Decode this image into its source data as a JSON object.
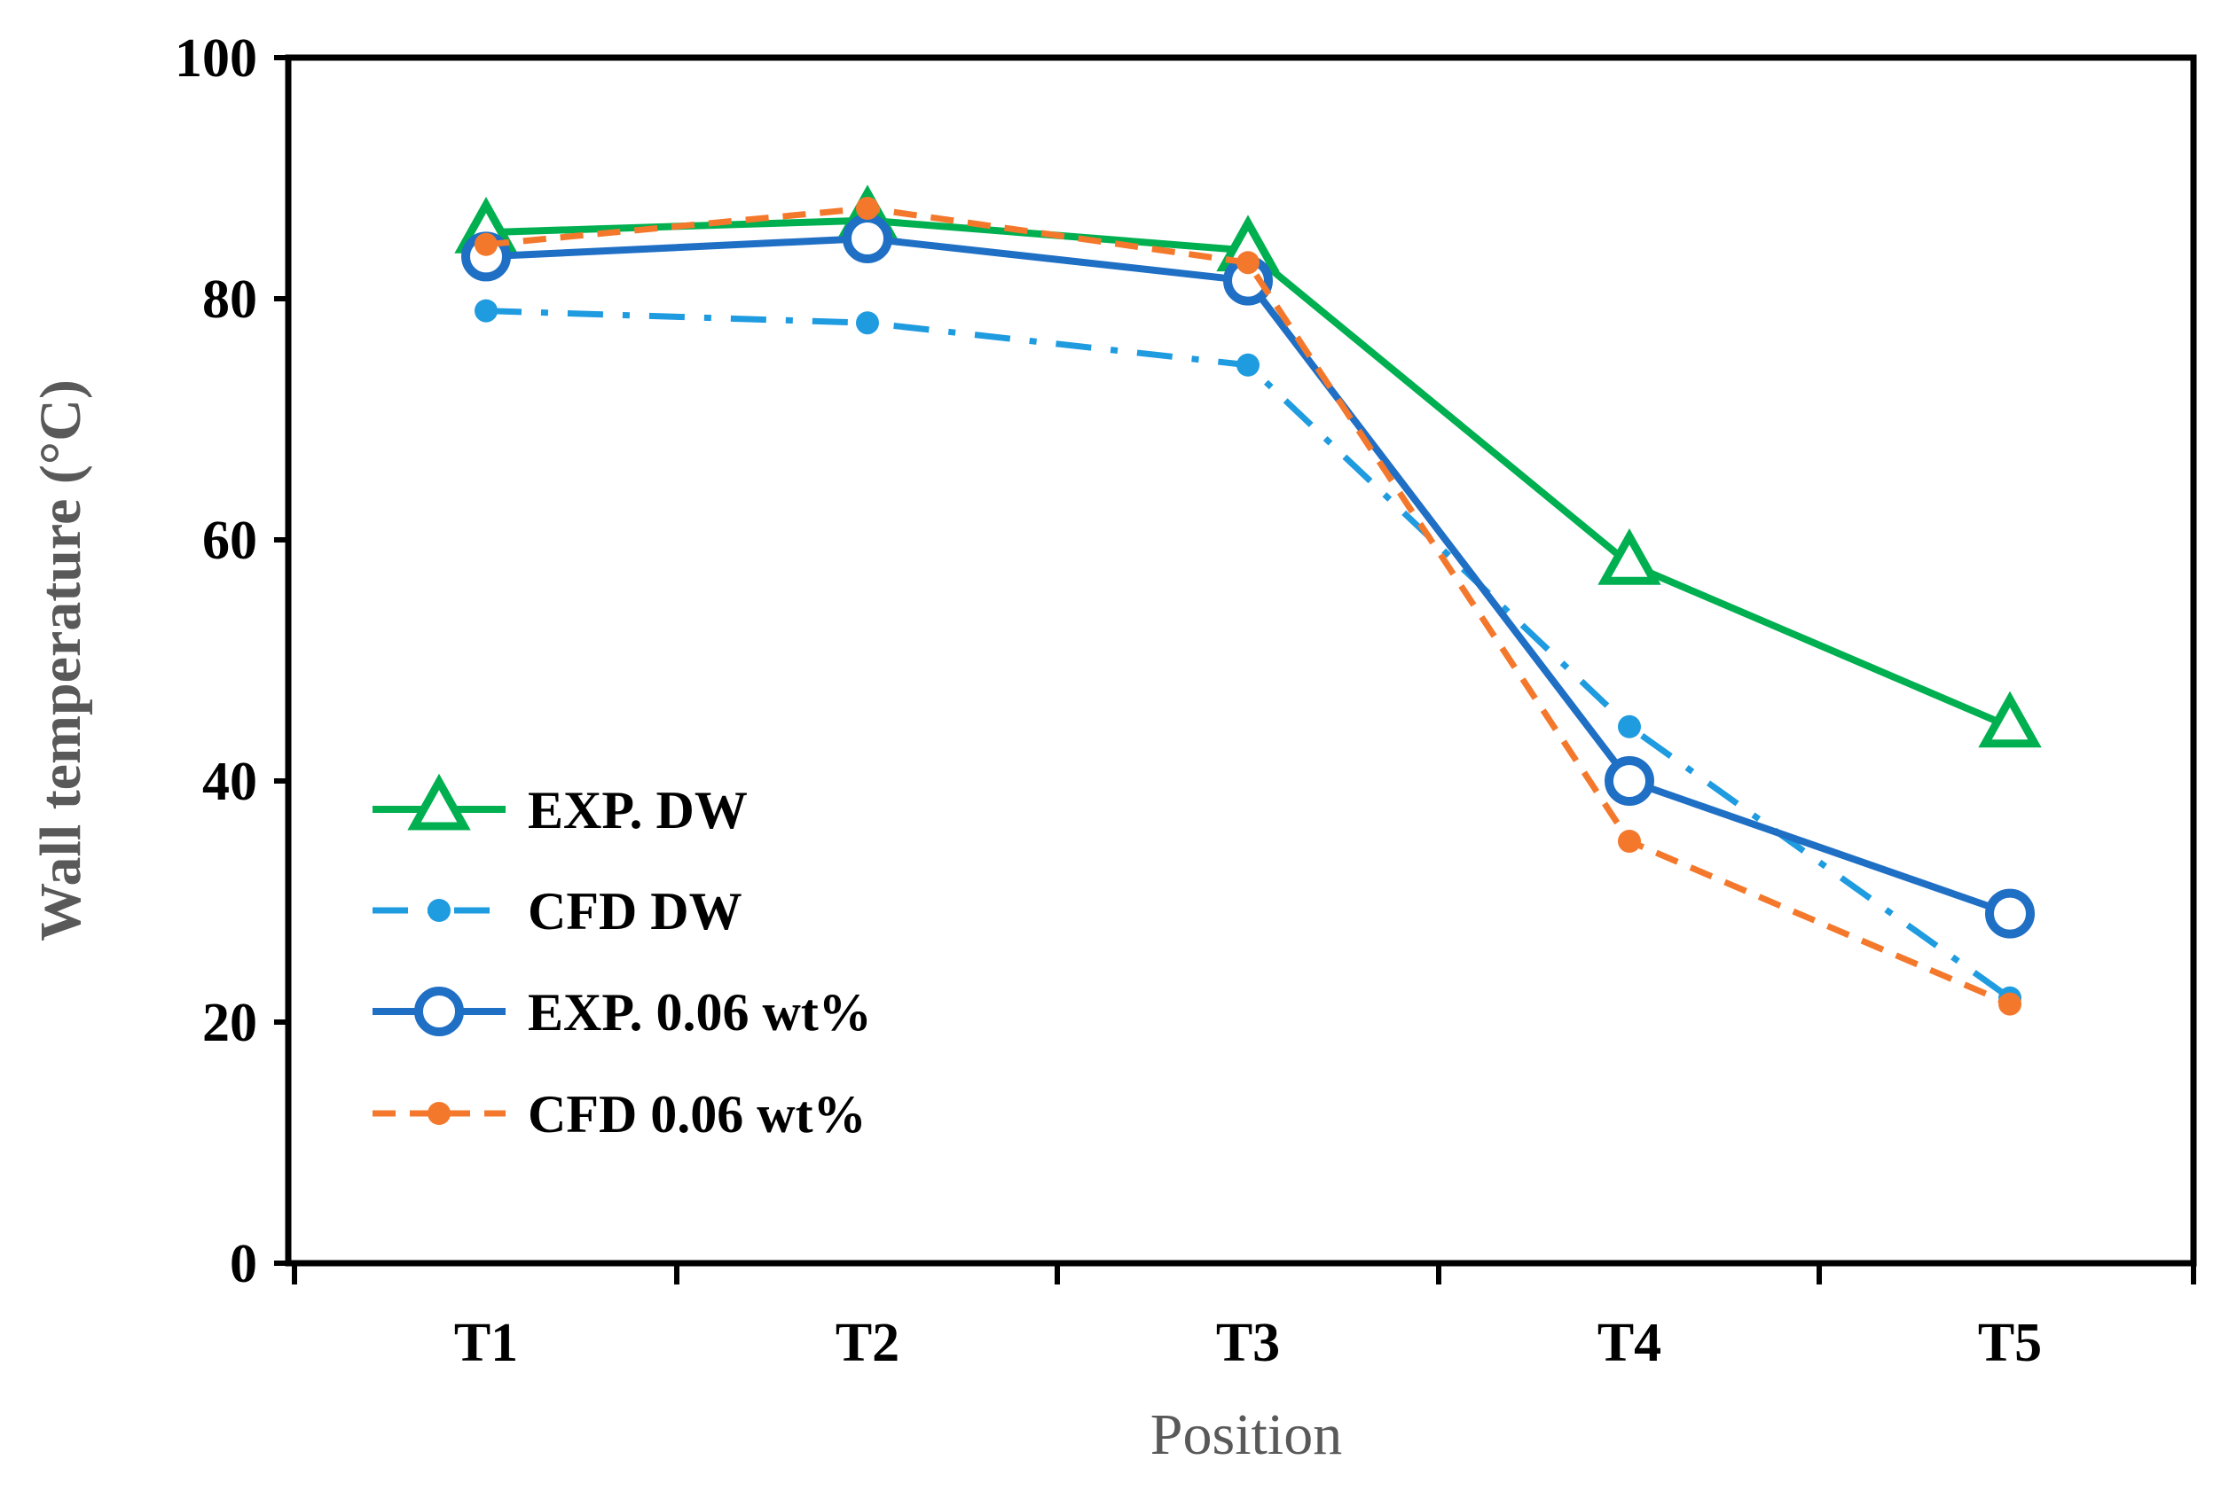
{
  "chart_data": {
    "type": "line",
    "title": "",
    "xlabel": "Position",
    "ylabel": "Wall temperature (°C)",
    "categories": [
      "T1",
      "T2",
      "T3",
      "T4",
      "T5"
    ],
    "ylim": [
      0,
      100
    ],
    "yticks": [
      0,
      20,
      40,
      60,
      80,
      100
    ],
    "grid": false,
    "legend_position": "left-middle",
    "series": [
      {
        "name": "EXP. DW",
        "values": [
          85.5,
          86.5,
          84.0,
          58.0,
          44.5
        ],
        "color": "#00B050",
        "line": "solid",
        "marker": "open-triangle"
      },
      {
        "name": "CFD DW",
        "values": [
          79.0,
          78.0,
          74.5,
          44.5,
          22.0
        ],
        "color": "#1F9BE0",
        "line": "dash-dot",
        "marker": "dot"
      },
      {
        "name": "EXP. 0.06 wt%",
        "values": [
          83.5,
          85.0,
          81.5,
          40.0,
          29.0
        ],
        "color": "#1F6FC5",
        "line": "solid",
        "marker": "open-circle"
      },
      {
        "name": "CFD 0.06 wt%",
        "values": [
          84.5,
          87.5,
          83.0,
          35.0,
          21.5
        ],
        "color": "#F4782C",
        "line": "dashed",
        "marker": "dot"
      }
    ]
  }
}
